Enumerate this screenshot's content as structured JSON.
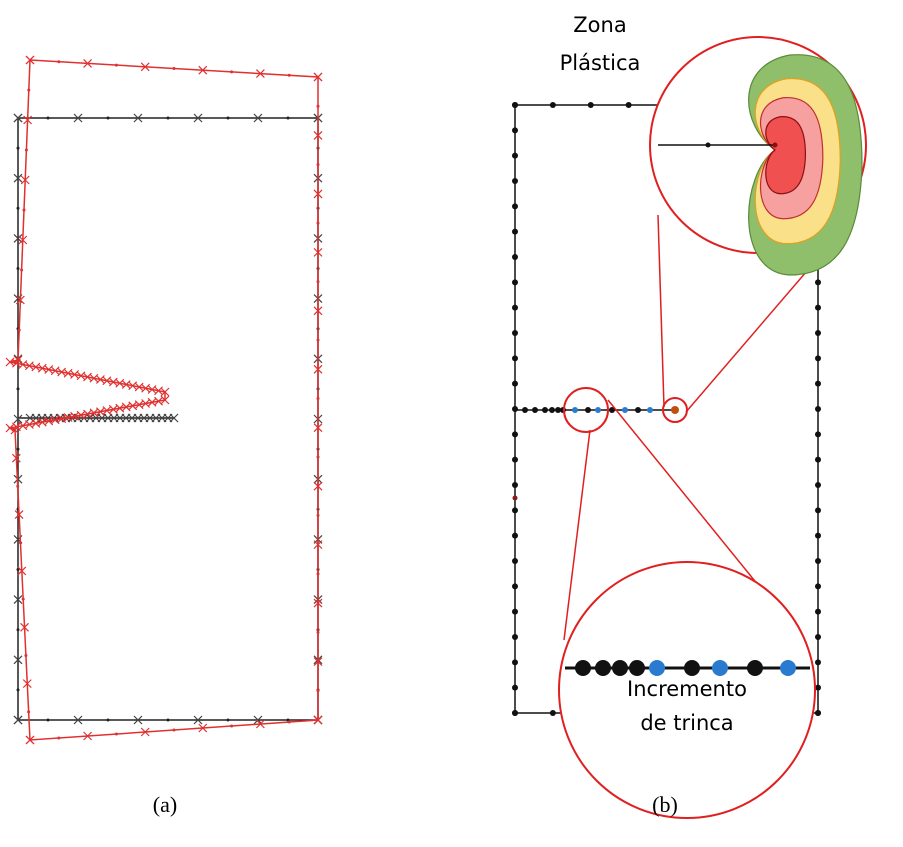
{
  "panels": [
    {
      "label": "(a)"
    },
    {
      "label": "(b)",
      "annotations": [
        {
          "lines": [
            "Zona",
            "Plástica"
          ]
        },
        {
          "lines": [
            "Incremento",
            "de trinca"
          ]
        }
      ]
    }
  ]
}
